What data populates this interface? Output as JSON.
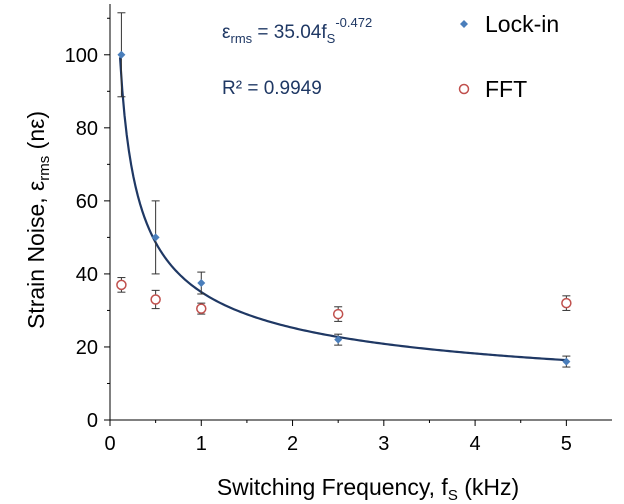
{
  "chart_data": {
    "type": "scatter",
    "xlabel": "Switching Frequency, f",
    "xlabel_sub": "S",
    "xlabel_unit": " (kHz)",
    "ylabel": "Strain Noise, ε",
    "ylabel_sub": "rms",
    "ylabel_unit": " (nε)",
    "xlim": [
      0,
      5.5
    ],
    "ylim": [
      0,
      115
    ],
    "x_ticks": [
      0,
      1,
      2,
      3,
      4,
      5
    ],
    "y_ticks": [
      0,
      20,
      40,
      60,
      80,
      100
    ],
    "grid": false,
    "annotations": {
      "equation_prefix": "ε",
      "equation_sub": "rms",
      "equation_mid": " = 35.04f",
      "equation_sub2": "S",
      "equation_exp": "-0.472",
      "r2": "R² = 0.9949"
    },
    "series": [
      {
        "name": "Lock-in",
        "marker": "diamond",
        "color": "#4a7ebb",
        "points": [
          {
            "x": 0.125,
            "y": 100,
            "err": 11.5
          },
          {
            "x": 0.5,
            "y": 50,
            "err": 10
          },
          {
            "x": 1.0,
            "y": 37.5,
            "err": 3
          },
          {
            "x": 2.5,
            "y": 22,
            "err": 1.5
          },
          {
            "x": 5.0,
            "y": 16,
            "err": 1.5
          }
        ]
      },
      {
        "name": "FFT",
        "marker": "open-circle",
        "color": "#c0504d",
        "points": [
          {
            "x": 0.125,
            "y": 37,
            "err": 2
          },
          {
            "x": 0.5,
            "y": 33,
            "err": 2.5
          },
          {
            "x": 1.0,
            "y": 30.5,
            "err": 1.5
          },
          {
            "x": 2.5,
            "y": 29,
            "err": 2
          },
          {
            "x": 5.0,
            "y": 32,
            "err": 2
          }
        ]
      }
    ],
    "fit": {
      "coefficient": 35.04,
      "exponent": -0.472,
      "x_range": [
        0.11,
        5.0
      ],
      "color": "#1f3864"
    }
  }
}
